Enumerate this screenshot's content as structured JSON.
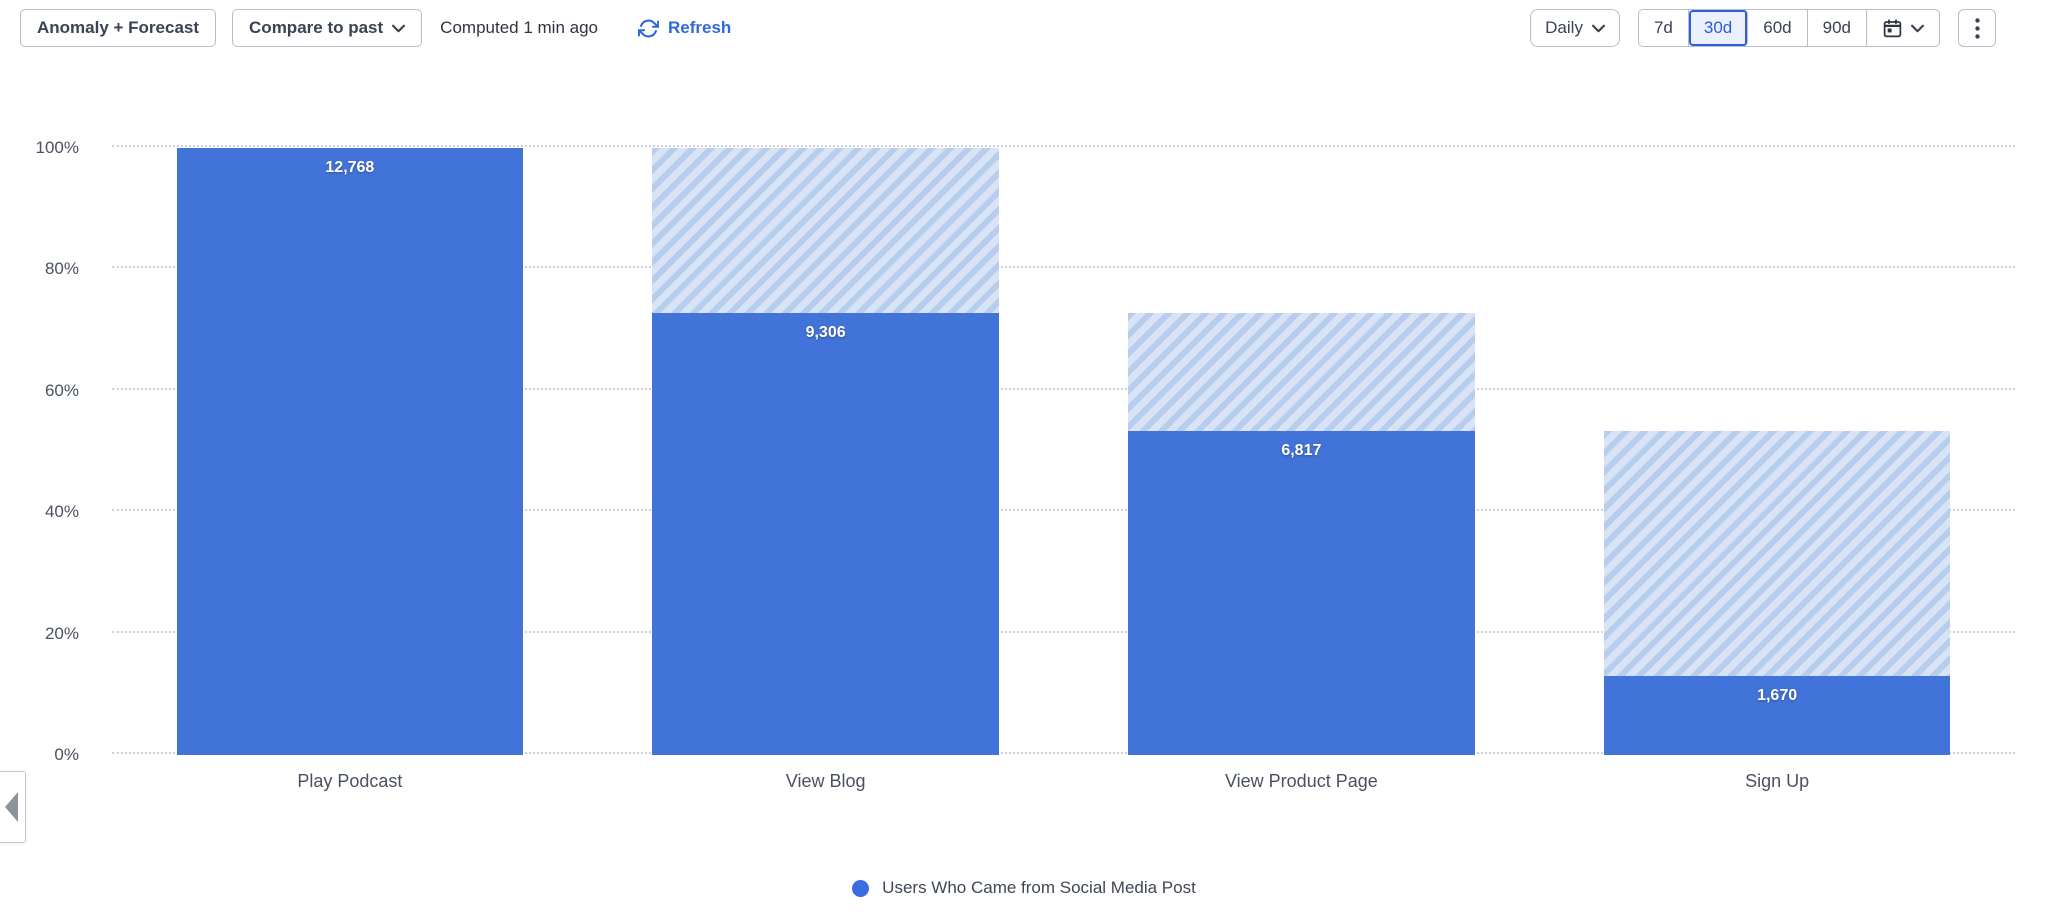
{
  "toolbar": {
    "anomaly_forecast_label": "Anomaly + Forecast",
    "compare_to_past_label": "Compare to past",
    "computed_label": "Computed 1 min ago",
    "refresh_label": "Refresh",
    "interval_label": "Daily",
    "range_options": [
      "7d",
      "30d",
      "60d",
      "90d"
    ],
    "selected_range": "30d"
  },
  "colors": {
    "bar_solid": "#4273d8",
    "hatch_stripe": "#b7cdee",
    "hatch_bg": "#d9e3f6",
    "accent_blue": "#2f69da",
    "selected_range_blue": "#2b5cd6",
    "legend_dot": "#3b6de2"
  },
  "chart_data": {
    "type": "bar",
    "subtype": "funnel-conversion",
    "title": "",
    "xlabel": "",
    "ylabel": "",
    "categories": [
      "Play Podcast",
      "View Blog",
      "View Product Page",
      "Sign Up"
    ],
    "values": [
      12768,
      9306,
      6817,
      1670
    ],
    "value_labels": [
      "12,768",
      "9,306",
      "6,817",
      "1,670"
    ],
    "pct_of_first": [
      100,
      72.9,
      53.4,
      13.1
    ],
    "yticks": [
      "0%",
      "20%",
      "40%",
      "60%",
      "80%",
      "100%"
    ],
    "ylim": [
      0,
      100
    ],
    "grid": "horizontal-dotted",
    "legend_position": "bottom-center",
    "series": [
      {
        "name": "Users Who Came from Social Media Post",
        "values": [
          12768,
          9306,
          6817,
          1670
        ]
      }
    ],
    "legend": [
      {
        "label": "Users Who Came from Social Media Post",
        "color": "#3b6de2"
      }
    ]
  }
}
